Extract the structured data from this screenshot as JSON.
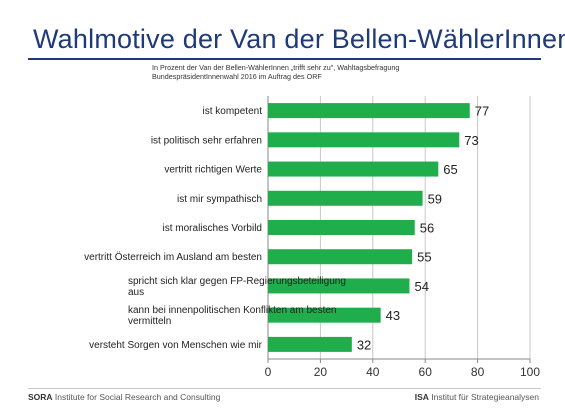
{
  "header": {
    "title": "Wahlmotive der Van der Bellen-WählerInnen",
    "subtitle": "In Prozent der Van der Bellen-WählerInnen „trifft sehr zu\", Wahltagsbefragung BundespräsidentInnenwahl 2016 im Auftrag des ORF"
  },
  "footer": {
    "left_org": "SORA",
    "left_rest": " Institute for Social Research and Consulting",
    "right_org": "ISA",
    "right_rest": " Institut für Strategieanalysen"
  },
  "colors": {
    "bar": "#1fae4b",
    "title": "#1f3a7a",
    "grid": "#c8c8c8"
  },
  "chart_data": {
    "type": "bar",
    "orientation": "horizontal",
    "categories": [
      "ist kompetent",
      "ist politisch sehr erfahren",
      "vertritt richtigen Werte",
      "ist mir sympathisch",
      "ist moralisches Vorbild",
      "vertritt Österreich im Ausland am besten",
      "spricht sich klar gegen FP-Regierungsbeteiligung aus",
      "kann bei innenpolitischen Konflikten am besten vermitteln",
      "versteht Sorgen von Menschen wie mir"
    ],
    "values": [
      77,
      73,
      65,
      59,
      56,
      55,
      54,
      43,
      32
    ],
    "xlim": [
      0,
      100
    ],
    "xticks": [
      0,
      20,
      40,
      60,
      80,
      100
    ],
    "grid": "vertical",
    "data_labels": true
  }
}
